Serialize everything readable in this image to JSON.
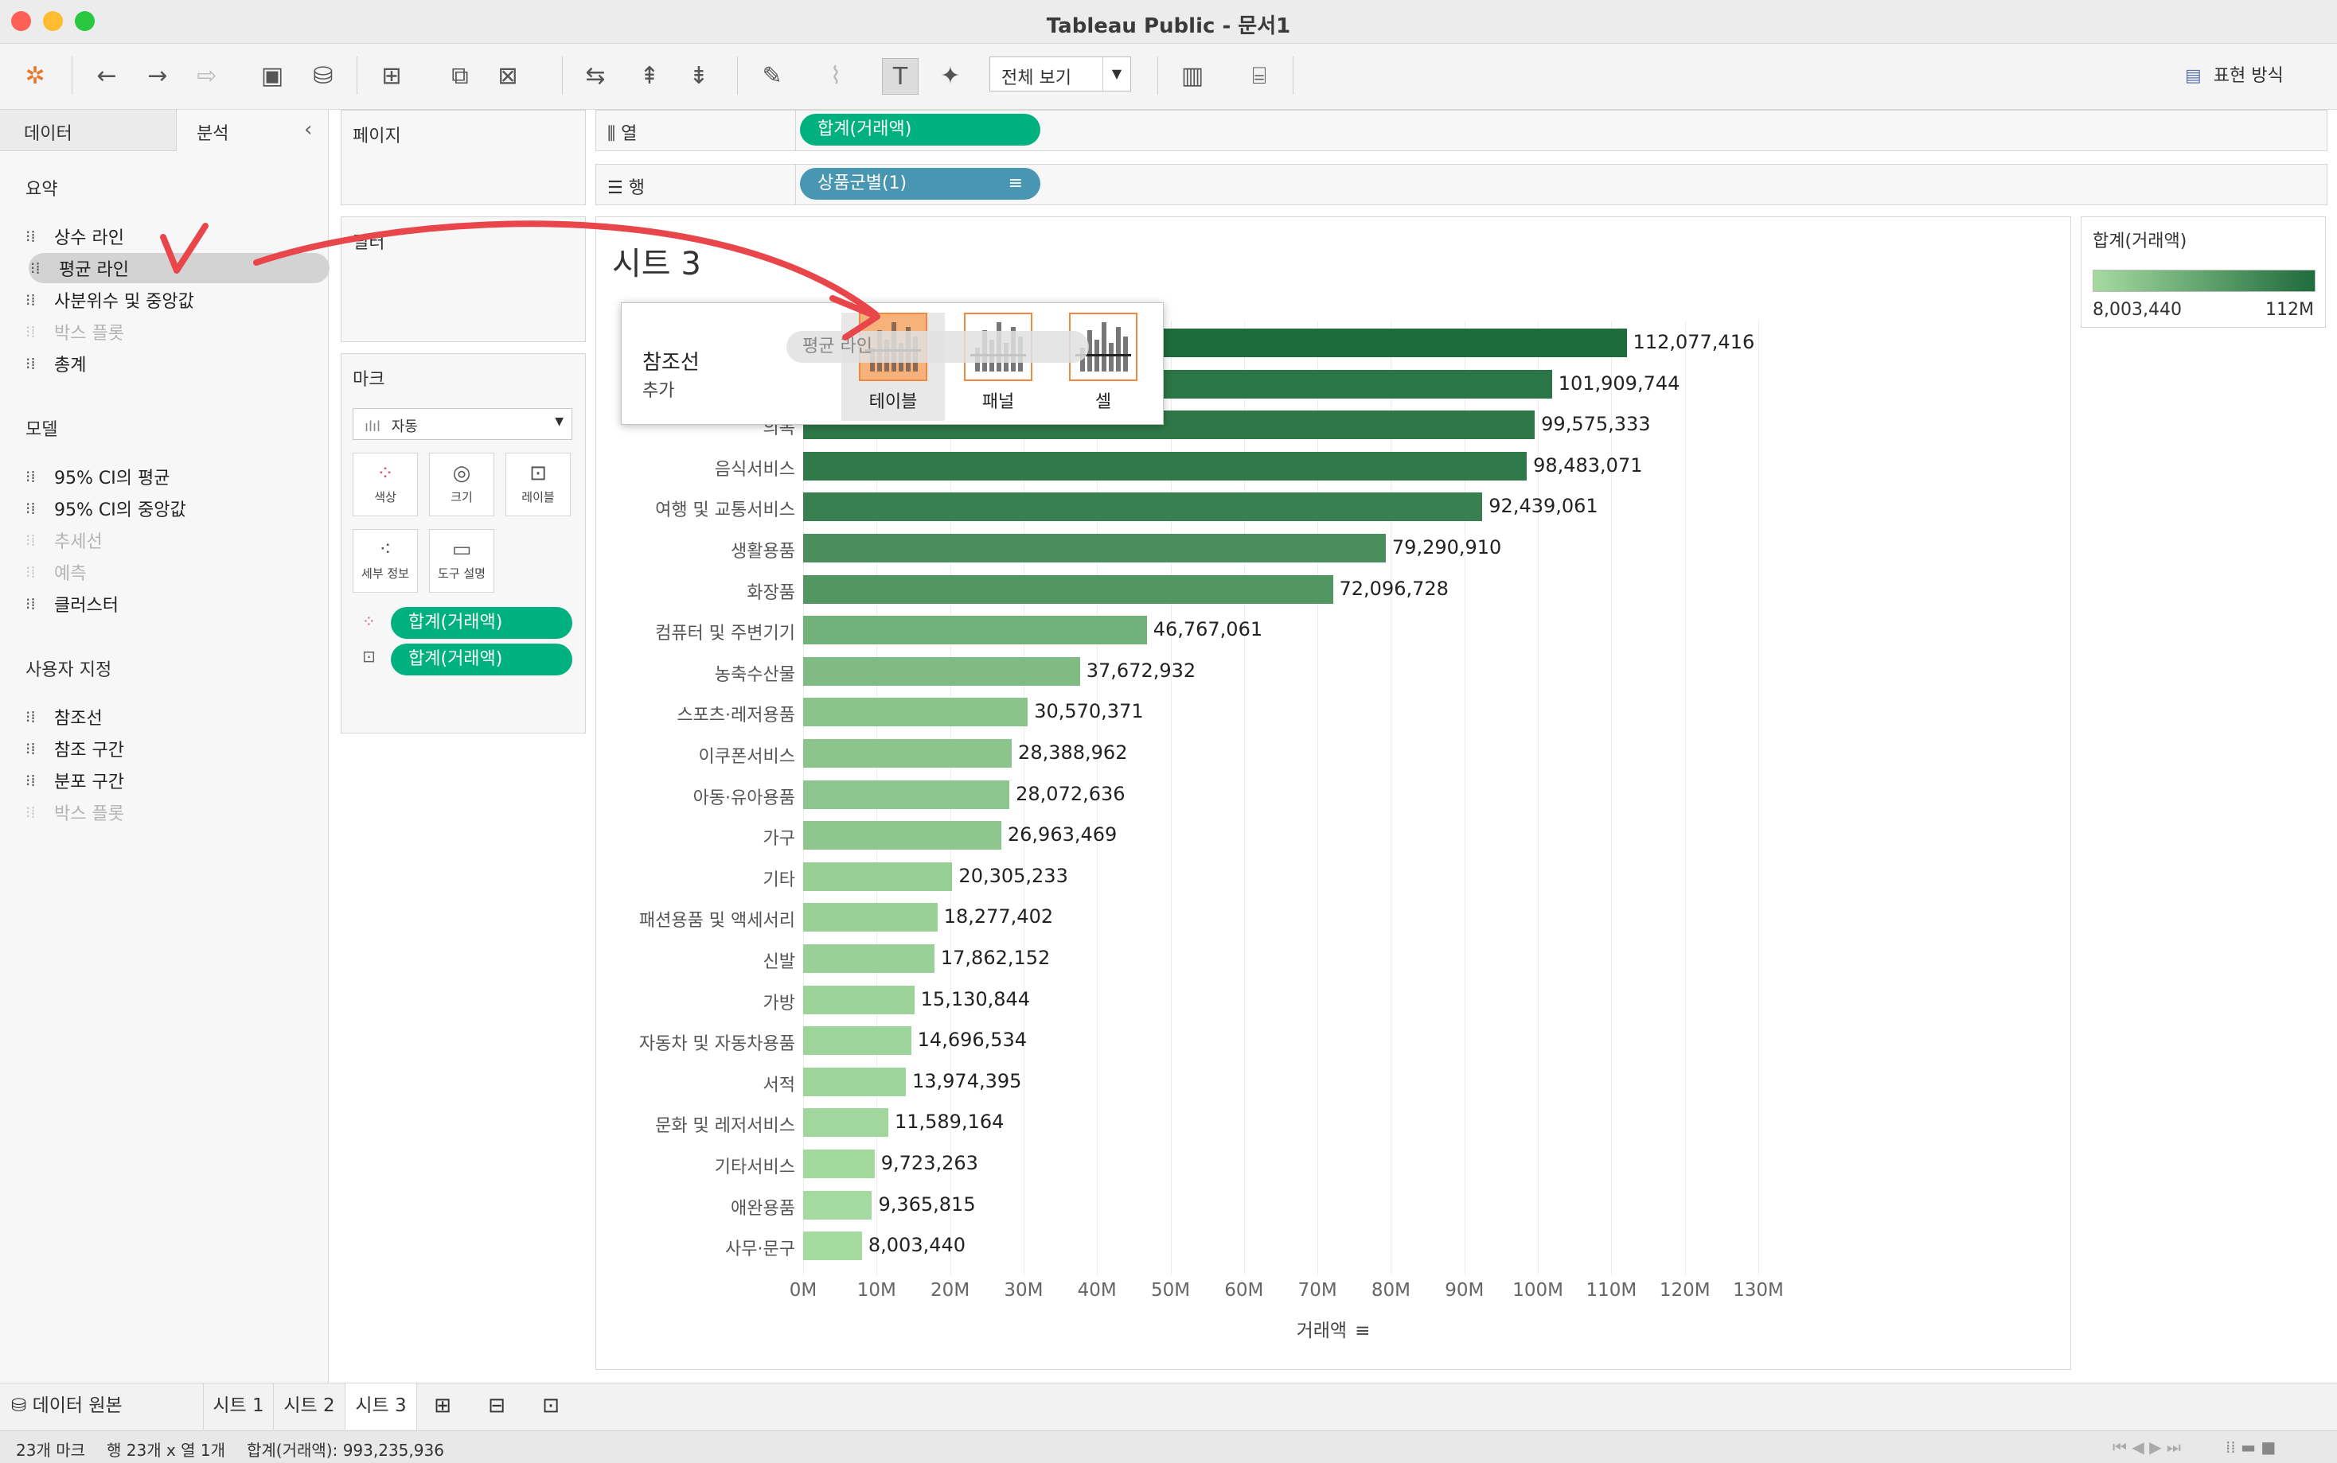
{
  "window": {
    "title": "Tableau Public - 문서1"
  },
  "toolbar": {
    "fit_select": "전체 보기",
    "show_me": "표현 방식"
  },
  "left_panel": {
    "tabs": [
      "데이터",
      "분석"
    ],
    "sections": [
      {
        "title": "요약",
        "items": [
          {
            "label": "상수 라인",
            "icon": "constant-line-icon",
            "disabled": false
          },
          {
            "label": "평균 라인",
            "icon": "average-line-icon",
            "disabled": false
          },
          {
            "label": "사분위수 및 중앙값",
            "icon": "quartile-icon",
            "disabled": false
          },
          {
            "label": "박스 플롯",
            "icon": "box-plot-icon",
            "disabled": true
          },
          {
            "label": "총계",
            "icon": "totals-icon",
            "disabled": false
          }
        ]
      },
      {
        "title": "모델",
        "items": [
          {
            "label": "95% CI의 평균",
            "icon": "ci-mean-icon",
            "disabled": false
          },
          {
            "label": "95% CI의 중앙값",
            "icon": "ci-median-icon",
            "disabled": false
          },
          {
            "label": "추세선",
            "icon": "trend-line-icon",
            "disabled": true
          },
          {
            "label": "예측",
            "icon": "forecast-icon",
            "disabled": true
          },
          {
            "label": "클러스터",
            "icon": "cluster-icon",
            "disabled": false
          }
        ]
      },
      {
        "title": "사용자 지정",
        "items": [
          {
            "label": "참조선",
            "icon": "reference-line-icon",
            "disabled": false
          },
          {
            "label": "참조 구간",
            "icon": "reference-band-icon",
            "disabled": false
          },
          {
            "label": "분포 구간",
            "icon": "distribution-band-icon",
            "disabled": false
          },
          {
            "label": "박스 플롯",
            "icon": "box-plot-icon",
            "disabled": true
          }
        ]
      }
    ]
  },
  "cards": {
    "pages": "페이지",
    "filters": "필터",
    "marks": {
      "title": "마크",
      "type": "자동",
      "buttons": [
        "색상",
        "크기",
        "레이블",
        "세부 정보",
        "도구 설명"
      ],
      "fields": [
        "합계(거래액)",
        "합계(거래액)"
      ]
    }
  },
  "shelves": {
    "columns_label": "열",
    "columns_pill": "합계(거래액)",
    "rows_label": "행",
    "rows_pill": "상품군별(1)"
  },
  "sheet": {
    "title": "시트 3"
  },
  "popup": {
    "title": "참조선",
    "subtitle": "추가",
    "options": [
      "테이블",
      "패널",
      "셀"
    ],
    "drag_label": "평균 라인"
  },
  "legend": {
    "title": "합계(거래액)",
    "min_label": "8,003,440",
    "max_label": "112M",
    "color_low": "#a6dba0",
    "color_high": "#1e6b3c"
  },
  "chart_data": {
    "type": "bar",
    "orientation": "horizontal",
    "categories": [
      "",
      "",
      "의복",
      "음식서비스",
      "여행 및 교통서비스",
      "생활용품",
      "화장품",
      "컴퓨터 및 주변기기",
      "농축수산물",
      "스포츠·레저용품",
      "이쿠폰서비스",
      "아동·유아용품",
      "가구",
      "기타",
      "패션용품 및 액세서리",
      "신발",
      "가방",
      "자동차 및 자동차용품",
      "서적",
      "문화 및 레저서비스",
      "기타서비스",
      "애완용품",
      "사무·문구"
    ],
    "values": [
      112077416,
      101909744,
      99575333,
      98483071,
      92439061,
      79290910,
      72096728,
      46767061,
      37672932,
      30570371,
      28388962,
      28072636,
      26963469,
      20305233,
      18277402,
      17862152,
      15130844,
      14696534,
      13974395,
      11589164,
      9723263,
      9365815,
      8003440
    ],
    "value_labels": [
      "112,077,416",
      "101,909,744",
      "99,575,333",
      "98,483,071",
      "92,439,061",
      "79,290,910",
      "72,096,728",
      "46,767,061",
      "37,672,932",
      "30,570,371",
      "28,388,962",
      "28,072,636",
      "26,963,469",
      "20,305,233",
      "18,277,402",
      "17,862,152",
      "15,130,844",
      "14,696,534",
      "13,974,395",
      "11,589,164",
      "9,723,263",
      "9,365,815",
      "8,003,440"
    ],
    "x_ticks": [
      "0M",
      "10M",
      "20M",
      "30M",
      "40M",
      "50M",
      "60M",
      "70M",
      "80M",
      "90M",
      "100M",
      "110M",
      "120M",
      "130M"
    ],
    "xlabel": "거래액",
    "xlim": [
      0,
      130000000
    ],
    "grid": true
  },
  "sheet_tabs": {
    "data_source": "데이터 원본",
    "sheets": [
      "시트 1",
      "시트 2",
      "시트 3"
    ],
    "active": 2
  },
  "status": {
    "marks": "23개 마크",
    "dims": "행 23개 x 열 1개",
    "sum": "합계(거래액): 993,235,936"
  }
}
